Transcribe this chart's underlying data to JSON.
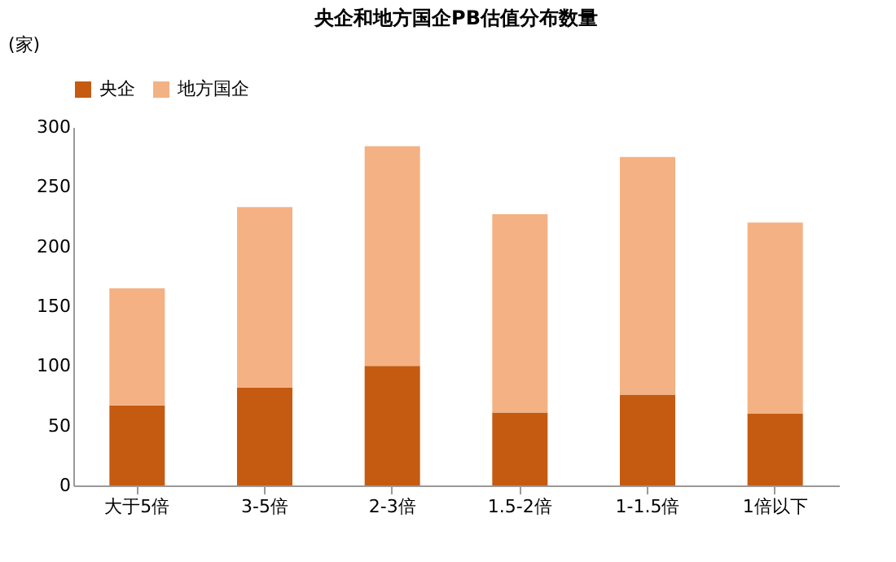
{
  "chart_data": {
    "type": "bar",
    "title": "央企和地方国企PB估值分布数量",
    "ylabel": "(家)",
    "categories": [
      "大于5倍",
      "3-5倍",
      "2-3倍",
      "1.5-2倍",
      "1-1.5倍",
      "1倍以下"
    ],
    "stacked": true,
    "series": [
      {
        "name": "央企",
        "color": "#c55a11",
        "values": [
          67,
          82,
          100,
          61,
          76,
          60
        ]
      },
      {
        "name": "地方国企",
        "color": "#f4b183",
        "values": [
          98,
          151,
          184,
          166,
          199,
          160
        ]
      }
    ],
    "ylim": [
      0,
      300
    ],
    "yticks": [
      0,
      50,
      100,
      150,
      200,
      250,
      300
    ],
    "grid": false,
    "legend": "top"
  }
}
